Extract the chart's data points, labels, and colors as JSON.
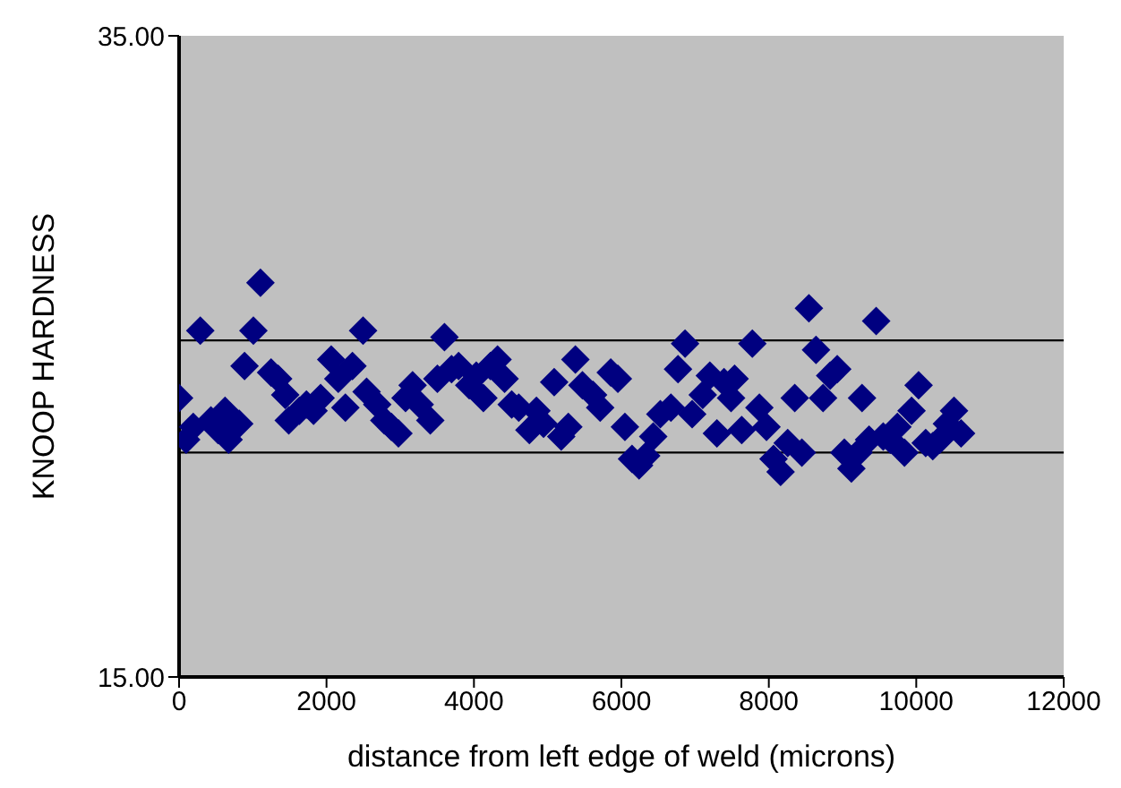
{
  "chart_data": {
    "type": "scatter",
    "xlabel": "distance from left edge of weld (microns)",
    "ylabel": "KNOOP HARDNESS",
    "x": [
      0,
      96,
      288,
      192,
      432,
      528,
      672,
      624,
      816,
      888,
      1008,
      1104,
      1248,
      1344,
      1488,
      1440,
      1632,
      1728,
      1824,
      1920,
      2064,
      2160,
      2256,
      2352,
      2496,
      2544,
      2688,
      2784,
      2880,
      2976,
      3072,
      3168,
      3264,
      3408,
      3504,
      3600,
      3696,
      3792,
      3936,
      4032,
      4128,
      4224,
      4320,
      4416,
      4512,
      4608,
      4752,
      4848,
      4944,
      5088,
      5184,
      5280,
      5376,
      5472,
      5616,
      5712,
      5856,
      5952,
      6048,
      6144,
      6240,
      6336,
      6432,
      6528,
      6672,
      6768,
      6864,
      6960,
      7104,
      7200,
      7296,
      7392,
      7488,
      7536,
      7632,
      7776,
      7872,
      7968,
      8064,
      8160,
      8256,
      8352,
      8448,
      8544,
      8640,
      8736,
      8832,
      8928,
      9024,
      9120,
      9216,
      9264,
      9360,
      9456,
      9552,
      9648,
      9744,
      9840,
      9936,
      10032,
      10128,
      10224,
      10320,
      10416,
      10512,
      10608
    ],
    "series": [
      {
        "color": "#000080",
        "values": [
          23.7,
          22.4,
          25.8,
          22.8,
          23.0,
          22.7,
          22.4,
          23.3,
          22.9,
          24.7,
          25.8,
          27.3,
          24.5,
          24.3,
          23.0,
          23.8,
          23.3,
          23.5,
          23.3,
          23.7,
          24.9,
          24.3,
          23.4,
          24.7,
          25.8,
          23.9,
          23.5,
          23.0,
          22.8,
          22.6,
          23.7,
          24.1,
          23.5,
          23.0,
          24.3,
          25.6,
          24.6,
          24.7,
          24.1,
          24.4,
          23.7,
          24.7,
          24.9,
          24.3,
          23.5,
          23.4,
          22.7,
          23.3,
          22.9,
          24.2,
          22.5,
          22.8,
          24.9,
          24.1,
          23.8,
          23.4,
          24.5,
          24.3,
          22.8,
          21.8,
          21.6,
          21.9,
          22.5,
          23.2,
          23.4,
          24.6,
          25.4,
          23.2,
          23.8,
          24.4,
          22.6,
          24.2,
          23.7,
          24.3,
          22.7,
          25.4,
          23.4,
          22.8,
          21.8,
          21.4,
          22.3,
          23.7,
          22.0,
          26.5,
          25.2,
          23.7,
          24.4,
          24.6,
          22.0,
          21.5,
          22.0,
          23.7,
          22.4,
          26.1,
          22.5,
          22.4,
          22.8,
          22.0,
          23.3,
          24.1,
          22.3,
          22.2,
          22.4,
          22.9,
          23.3,
          22.6
        ]
      }
    ],
    "xlim": [
      0,
      12000
    ],
    "xticks": [
      0,
      2000,
      4000,
      6000,
      8000,
      10000,
      12000
    ],
    "ylim": [
      15,
      35
    ],
    "yticks": [
      {
        "value": 15,
        "label": "15.00"
      },
      {
        "value": 35,
        "label": "35.00"
      }
    ],
    "ref_lines": [
      {
        "axis": "y",
        "value": 25.5,
        "color": "#000000"
      },
      {
        "axis": "y",
        "value": 22.0,
        "color": "#000000"
      }
    ],
    "marker": "diamond",
    "grid": false
  }
}
